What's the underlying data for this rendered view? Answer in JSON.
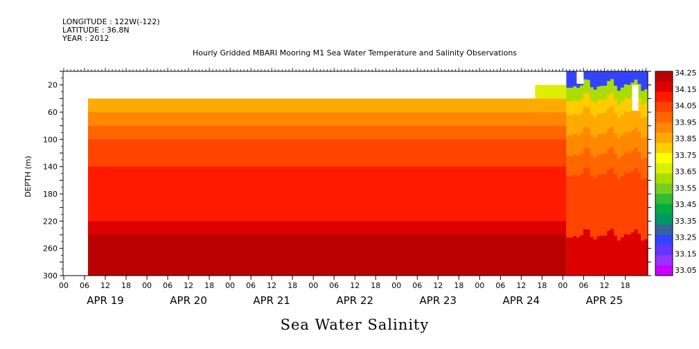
{
  "header": {
    "longitude": "LONGITUDE : 122W(-122)",
    "latitude": "LATITUDE : 36.8N",
    "year": "YEAR : 2012"
  },
  "chart_data": {
    "type": "heatmap",
    "title": "Hourly Gridded MBARI Mooring M1 Sea Water Temperature and Salinity Observations",
    "xlabel": "",
    "ylabel": "DEPTH (m)",
    "variable_label": "Sea Water Salinity",
    "y_inverted": true,
    "ylim": [
      300,
      0
    ],
    "yticks": [
      20,
      60,
      100,
      140,
      180,
      220,
      260,
      300
    ],
    "xticks_hours": [
      "00",
      "06",
      "12",
      "18",
      "00",
      "06",
      "12",
      "18",
      "00",
      "06",
      "12",
      "18",
      "00",
      "06",
      "12",
      "18",
      "00",
      "06",
      "12",
      "18",
      "00",
      "06",
      "12",
      "18",
      "00",
      "06",
      "12",
      "18"
    ],
    "day_labels": [
      "APR 19",
      "APR 20",
      "APR 21",
      "APR 22",
      "APR 23",
      "APR 24",
      "APR 25"
    ],
    "colorbar": {
      "levels": [
        33.05,
        33.15,
        33.25,
        33.35,
        33.45,
        33.55,
        33.65,
        33.75,
        33.85,
        33.95,
        34.05,
        34.15,
        34.25
      ],
      "labels": [
        "33.05",
        "33.15",
        "33.25",
        "33.35",
        "33.45",
        "33.55",
        "33.65",
        "33.75",
        "33.85",
        "33.95",
        "34.05",
        "34.15",
        "34.25"
      ],
      "colors": [
        "#cc00ff",
        "#9933ff",
        "#6633ff",
        "#3344ff",
        "#336699",
        "#009966",
        "#00aa44",
        "#33bb33",
        "#77cc22",
        "#aadd00",
        "#ddee00",
        "#ffff00",
        "#ffcc00",
        "#ffaa00",
        "#ff8800",
        "#ff6600",
        "#ff4400",
        "#ff1a00",
        "#dd0000",
        "#bb0000"
      ]
    },
    "data_start": "APR 19 06",
    "profile_apr19_apr24": [
      {
        "depth_range": [
          40,
          50
        ],
        "salinity": 33.9
      },
      {
        "depth_range": [
          50,
          60
        ],
        "salinity": 33.95
      },
      {
        "depth_range": [
          60,
          80
        ],
        "salinity": 34.0
      },
      {
        "depth_range": [
          80,
          100
        ],
        "salinity": 34.05
      },
      {
        "depth_range": [
          100,
          120
        ],
        "salinity": 34.1
      },
      {
        "depth_range": [
          120,
          140
        ],
        "salinity": 34.15
      },
      {
        "depth_range": [
          140,
          220
        ],
        "salinity": 34.2
      },
      {
        "depth_range": [
          220,
          240
        ],
        "salinity": 34.22
      },
      {
        "depth_range": [
          240,
          300
        ],
        "salinity": 34.3
      }
    ],
    "apr24_late_surface": {
      "depth_range": [
        20,
        40
      ],
      "salinity": 33.75
    },
    "apr25_surface": {
      "depth_range": [
        0,
        20
      ],
      "salinity": 33.3
    }
  }
}
